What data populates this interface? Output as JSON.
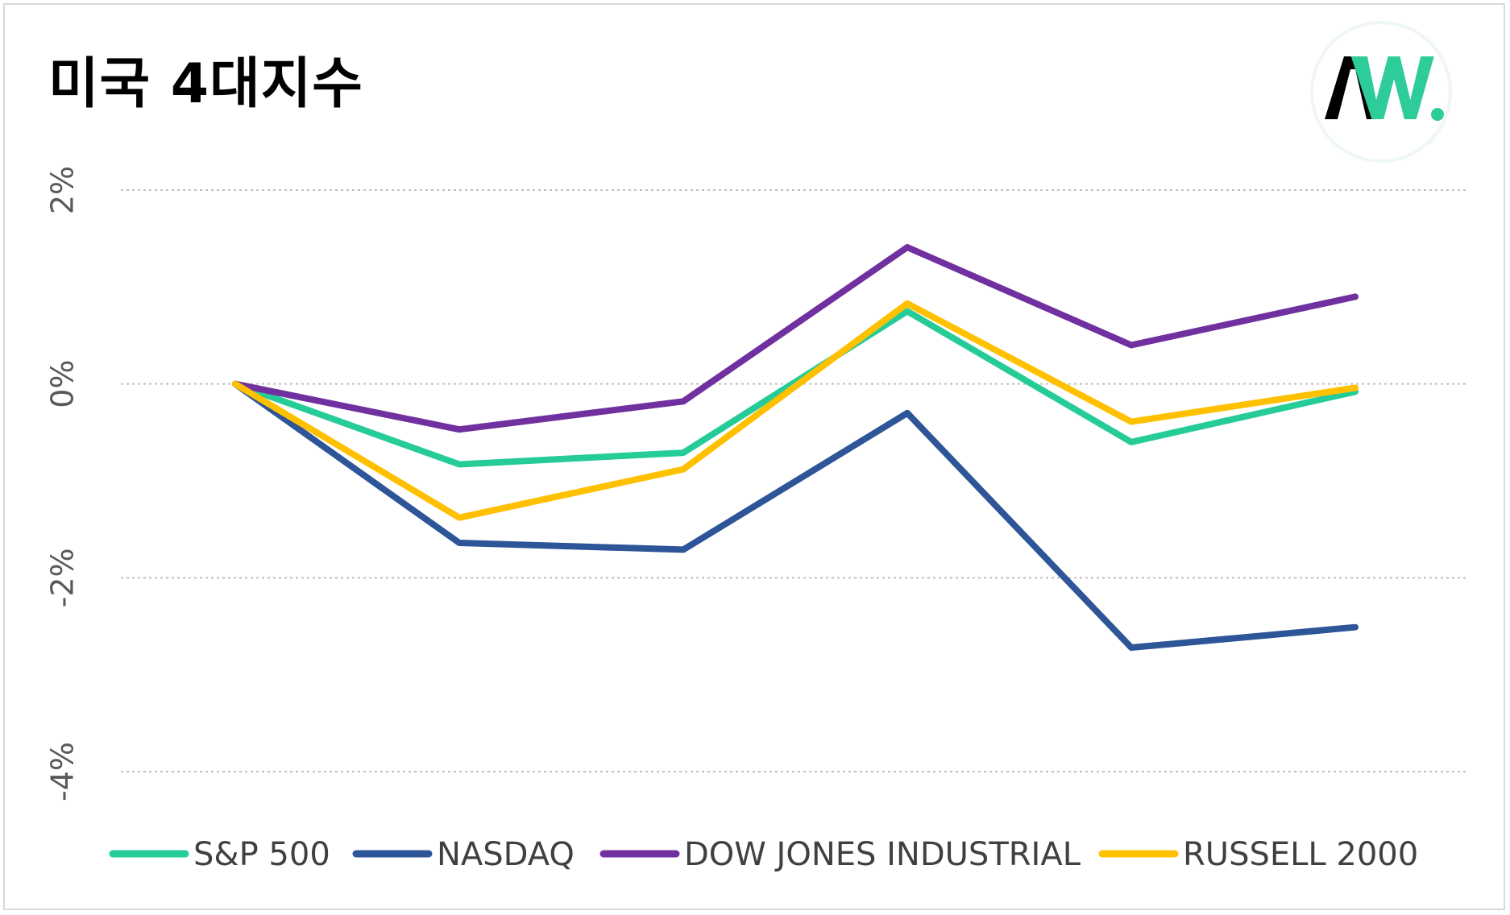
{
  "title": "미국 4대지수",
  "logo": {
    "text_a": "A",
    "text_w": "W",
    "dot": ".",
    "colors": {
      "dark": "#000000",
      "green": "#2ecc9a"
    }
  },
  "chart_data": {
    "type": "line",
    "title": "미국 4대지수",
    "xlabel": "",
    "ylabel": "",
    "ylim": [
      -4,
      2
    ],
    "yticks": [
      2,
      0,
      -2,
      -4
    ],
    "ytick_labels": [
      "2%",
      "0%",
      "-2%",
      "-4%"
    ],
    "grid": true,
    "legend_position": "bottom",
    "x": [
      0,
      1,
      2,
      3,
      4,
      5
    ],
    "series": [
      {
        "name": "S&P 500",
        "color": "#26cc98",
        "values": [
          0,
          -0.83,
          -0.71,
          0.75,
          -0.6,
          -0.08
        ]
      },
      {
        "name": "NASDAQ",
        "color": "#2d5597",
        "values": [
          0,
          -1.64,
          -1.71,
          -0.3,
          -2.72,
          -2.51
        ]
      },
      {
        "name": "DOW JONES INDUSTRIAL",
        "color": "#7030a0",
        "values": [
          0,
          -0.47,
          -0.18,
          1.41,
          0.4,
          0.9
        ]
      },
      {
        "name": "RUSSELL 2000",
        "color": "#ffc000",
        "values": [
          0,
          -1.38,
          -0.88,
          0.83,
          -0.39,
          -0.04
        ]
      }
    ]
  }
}
